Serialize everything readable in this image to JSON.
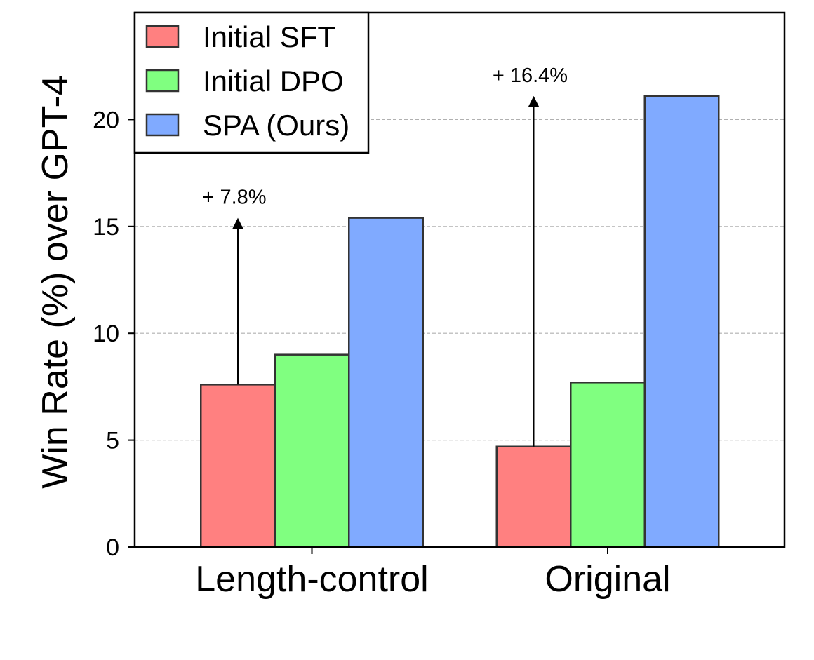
{
  "chart_data": {
    "type": "bar",
    "title": "",
    "xlabel": "",
    "ylabel": "Win Rate (%) over GPT-4",
    "categories": [
      "Length-control",
      "Original"
    ],
    "series": [
      {
        "name": "Initial SFT",
        "color": "#ff8080",
        "values": [
          7.6,
          4.7
        ]
      },
      {
        "name": "Initial DPO",
        "color": "#80ff80",
        "values": [
          9.0,
          7.7
        ]
      },
      {
        "name": "SPA (Ours)",
        "color": "#80aaff",
        "values": [
          15.4,
          21.1
        ]
      }
    ],
    "ylim": [
      0,
      25
    ],
    "yticks": [
      0,
      5,
      10,
      15,
      20
    ],
    "grid": {
      "y": true,
      "style": "dashed",
      "color": "#b0b0b0"
    },
    "legend": {
      "position": "top-left",
      "frame": true
    },
    "annotations": [
      {
        "category": "Length-control",
        "label": "+ 7.8%",
        "from": 7.6,
        "to": 15.4
      },
      {
        "category": "Original",
        "label": "+ 16.4%",
        "from": 4.7,
        "to": 21.1
      }
    ]
  }
}
